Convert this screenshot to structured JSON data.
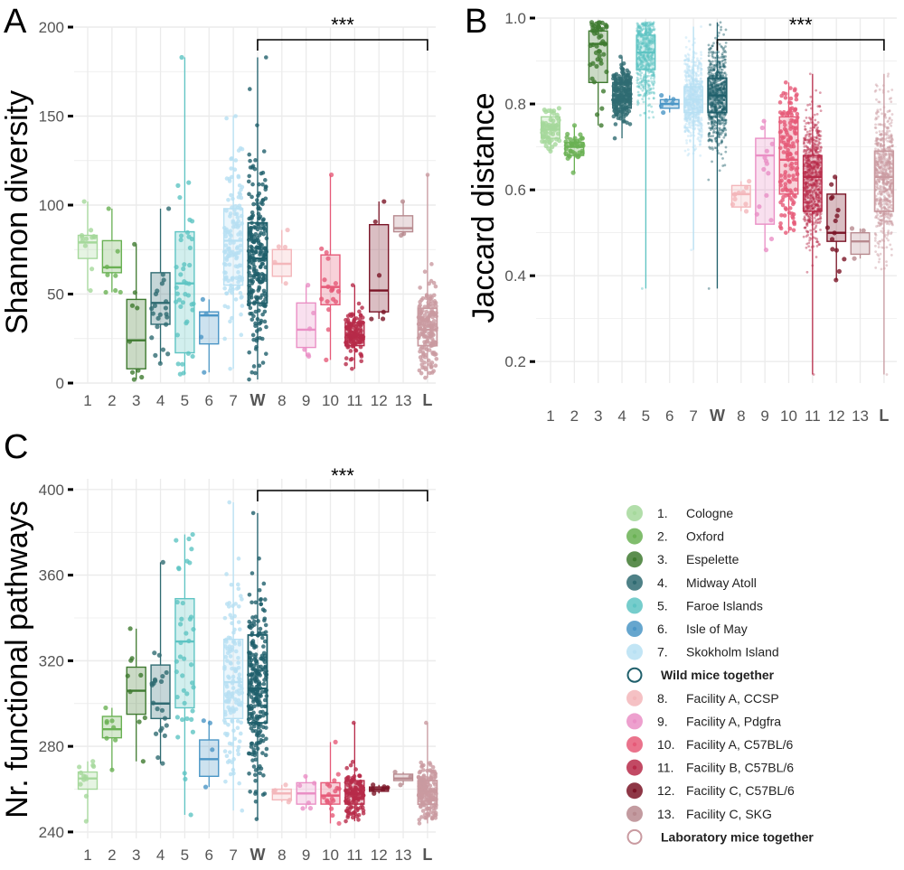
{
  "chart_data": [
    {
      "type": "box",
      "panel": "A",
      "title": "",
      "xlabel": "",
      "ylabel": "Shannon diversity",
      "ylim": [
        0,
        200
      ],
      "yticks": [
        0,
        50,
        100,
        150,
        200
      ],
      "categories": [
        "1",
        "2",
        "3",
        "4",
        "5",
        "6",
        "7",
        "W",
        "8",
        "9",
        "10",
        "11",
        "12",
        "13",
        "L"
      ],
      "bold_categories": [
        "W",
        "L"
      ],
      "significance": {
        "label": "***",
        "from": "W",
        "to": "L"
      },
      "boxes": [
        {
          "category": "1",
          "group": 0,
          "q1": 70,
          "median": 79,
          "q3": 83,
          "lo": 52,
          "hi": 102,
          "n": 12
        },
        {
          "category": "2",
          "group": 1,
          "q1": 62,
          "median": 65,
          "q3": 80,
          "lo": 51,
          "hi": 98,
          "n": 8
        },
        {
          "category": "3",
          "group": 2,
          "q1": 8,
          "median": 24,
          "q3": 47,
          "lo": 2,
          "hi": 78,
          "n": 9
        },
        {
          "category": "4",
          "group": 3,
          "q1": 33,
          "median": 45,
          "q3": 62,
          "lo": 11,
          "hi": 98,
          "n": 22
        },
        {
          "category": "5",
          "group": 4,
          "q1": 17,
          "median": 56,
          "q3": 85,
          "lo": 5,
          "hi": 183,
          "n": 40
        },
        {
          "category": "6",
          "group": 5,
          "q1": 22,
          "median": 38,
          "q3": 40,
          "lo": 6,
          "hi": 47,
          "n": 4
        },
        {
          "category": "7",
          "group": 6,
          "q1": 55,
          "median": 80,
          "q3": 98,
          "lo": 8,
          "hi": 150,
          "n": 140
        },
        {
          "category": "W",
          "group": 7,
          "q1": 45,
          "median": 70,
          "q3": 90,
          "lo": 2,
          "hi": 183,
          "n": 250
        },
        {
          "category": "8",
          "group": 8,
          "q1": 60,
          "median": 67,
          "q3": 75,
          "lo": 56,
          "hi": 86,
          "n": 5
        },
        {
          "category": "9",
          "group": 9,
          "q1": 20,
          "median": 30,
          "q3": 45,
          "lo": 15,
          "hi": 55,
          "n": 6
        },
        {
          "category": "10",
          "group": 10,
          "q1": 44,
          "median": 54,
          "q3": 72,
          "lo": 13,
          "hi": 117,
          "n": 18
        },
        {
          "category": "11",
          "group": 11,
          "q1": 21,
          "median": 27,
          "q3": 34,
          "lo": 8,
          "hi": 55,
          "n": 120
        },
        {
          "category": "12",
          "group": 12,
          "q1": 40,
          "median": 52,
          "q3": 89,
          "lo": 36,
          "hi": 102,
          "n": 6
        },
        {
          "category": "13",
          "group": 13,
          "q1": 85,
          "median": 87,
          "q3": 94,
          "lo": 83,
          "hi": 102,
          "n": 3
        },
        {
          "category": "L",
          "group": 14,
          "q1": 21,
          "median": 30,
          "q3": 42,
          "lo": 3,
          "hi": 117,
          "n": 180
        }
      ]
    },
    {
      "type": "box",
      "panel": "B",
      "title": "",
      "xlabel": "",
      "ylabel": "Jaccard distance",
      "ylim": [
        0.15,
        1.0
      ],
      "yticks": [
        0.2,
        0.4,
        0.6,
        0.8,
        1.0
      ],
      "ytick_labels": [
        "0.2",
        "0.4",
        "0.6",
        "0.8",
        "1.0"
      ],
      "categories": [
        "1",
        "2",
        "3",
        "4",
        "5",
        "6",
        "7",
        "W",
        "8",
        "9",
        "10",
        "11",
        "12",
        "13",
        "L"
      ],
      "bold_categories": [
        "W",
        "L"
      ],
      "significance": {
        "label": "***",
        "from": "W",
        "to": "L"
      },
      "boxes": [
        {
          "category": "1",
          "group": 0,
          "q1": 0.72,
          "median": 0.74,
          "q3": 0.77,
          "lo": 0.69,
          "hi": 0.79,
          "n": 60
        },
        {
          "category": "2",
          "group": 1,
          "q1": 0.68,
          "median": 0.7,
          "q3": 0.71,
          "lo": 0.64,
          "hi": 0.75,
          "n": 40
        },
        {
          "category": "3",
          "group": 2,
          "q1": 0.85,
          "median": 0.94,
          "q3": 0.97,
          "lo": 0.75,
          "hi": 0.99,
          "n": 50
        },
        {
          "category": "4",
          "group": 3,
          "q1": 0.79,
          "median": 0.82,
          "q3": 0.85,
          "lo": 0.72,
          "hi": 0.91,
          "n": 200
        },
        {
          "category": "5",
          "group": 4,
          "q1": 0.88,
          "median": 0.92,
          "q3": 0.96,
          "lo": 0.37,
          "hi": 0.99,
          "n": 500
        },
        {
          "category": "6",
          "group": 5,
          "q1": 0.79,
          "median": 0.8,
          "q3": 0.81,
          "lo": 0.78,
          "hi": 0.82,
          "n": 6
        },
        {
          "category": "7",
          "group": 6,
          "q1": 0.78,
          "median": 0.81,
          "q3": 0.84,
          "lo": 0.46,
          "hi": 0.98,
          "n": 900
        },
        {
          "category": "W",
          "group": 7,
          "q1": 0.78,
          "median": 0.82,
          "q3": 0.86,
          "lo": 0.37,
          "hi": 0.99,
          "n": 1400
        },
        {
          "category": "8",
          "group": 8,
          "q1": 0.56,
          "median": 0.59,
          "q3": 0.61,
          "lo": 0.55,
          "hi": 0.62,
          "n": 10
        },
        {
          "category": "9",
          "group": 9,
          "q1": 0.52,
          "median": 0.68,
          "q3": 0.72,
          "lo": 0.46,
          "hi": 0.76,
          "n": 15
        },
        {
          "category": "10",
          "group": 10,
          "q1": 0.59,
          "median": 0.67,
          "q3": 0.77,
          "lo": 0.5,
          "hi": 0.85,
          "n": 150
        },
        {
          "category": "11",
          "group": 11,
          "q1": 0.55,
          "median": 0.63,
          "q3": 0.68,
          "lo": 0.17,
          "hi": 0.87,
          "n": 3000
        },
        {
          "category": "12",
          "group": 12,
          "q1": 0.48,
          "median": 0.5,
          "q3": 0.59,
          "lo": 0.39,
          "hi": 0.63,
          "n": 15
        },
        {
          "category": "13",
          "group": 13,
          "q1": 0.45,
          "median": 0.48,
          "q3": 0.5,
          "lo": 0.44,
          "hi": 0.51,
          "n": 3
        },
        {
          "category": "L",
          "group": 14,
          "q1": 0.55,
          "median": 0.63,
          "q3": 0.69,
          "lo": 0.17,
          "hi": 0.87,
          "n": 3500
        }
      ]
    },
    {
      "type": "box",
      "panel": "C",
      "title": "",
      "xlabel": "",
      "ylabel": "Nr. functional pathways",
      "ylim": [
        237,
        405
      ],
      "yticks": [
        240,
        280,
        320,
        360,
        400
      ],
      "categories": [
        "1",
        "2",
        "3",
        "4",
        "5",
        "6",
        "7",
        "W",
        "8",
        "9",
        "10",
        "11",
        "12",
        "13",
        "L"
      ],
      "bold_categories": [
        "W",
        "L"
      ],
      "significance": {
        "label": "***",
        "from": "W",
        "to": "L"
      },
      "boxes": [
        {
          "category": "1",
          "group": 0,
          "q1": 260,
          "median": 265,
          "q3": 268,
          "lo": 245,
          "hi": 273,
          "n": 12
        },
        {
          "category": "2",
          "group": 1,
          "q1": 284,
          "median": 288,
          "q3": 294,
          "lo": 269,
          "hi": 298,
          "n": 8
        },
        {
          "category": "3",
          "group": 2,
          "q1": 295,
          "median": 306,
          "q3": 317,
          "lo": 273,
          "hi": 335,
          "n": 9
        },
        {
          "category": "4",
          "group": 3,
          "q1": 293,
          "median": 300,
          "q3": 318,
          "lo": 272,
          "hi": 366,
          "n": 22
        },
        {
          "category": "5",
          "group": 4,
          "q1": 298,
          "median": 329,
          "q3": 349,
          "lo": 248,
          "hi": 379,
          "n": 40
        },
        {
          "category": "6",
          "group": 5,
          "q1": 266,
          "median": 274,
          "q3": 283,
          "lo": 261,
          "hi": 292,
          "n": 4
        },
        {
          "category": "7",
          "group": 6,
          "q1": 293,
          "median": 310,
          "q3": 330,
          "lo": 250,
          "hi": 394,
          "n": 140
        },
        {
          "category": "W",
          "group": 7,
          "q1": 291,
          "median": 307,
          "q3": 332,
          "lo": 246,
          "hi": 389,
          "n": 250
        },
        {
          "category": "8",
          "group": 8,
          "q1": 255,
          "median": 258,
          "q3": 260,
          "lo": 254,
          "hi": 262,
          "n": 5
        },
        {
          "category": "9",
          "group": 9,
          "q1": 253,
          "median": 258,
          "q3": 263,
          "lo": 251,
          "hi": 266,
          "n": 6
        },
        {
          "category": "10",
          "group": 10,
          "q1": 253,
          "median": 257,
          "q3": 263,
          "lo": 244,
          "hi": 282,
          "n": 18
        },
        {
          "category": "11",
          "group": 11,
          "q1": 253,
          "median": 258,
          "q3": 264,
          "lo": 245,
          "hi": 291,
          "n": 120
        },
        {
          "category": "12",
          "group": 12,
          "q1": 259,
          "median": 260,
          "q3": 261,
          "lo": 258,
          "hi": 262,
          "n": 6
        },
        {
          "category": "13",
          "group": 13,
          "q1": 264,
          "median": 265,
          "q3": 267,
          "lo": 262,
          "hi": 268,
          "n": 3
        },
        {
          "category": "L",
          "group": 14,
          "q1": 253,
          "median": 259,
          "q3": 264,
          "lo": 244,
          "hi": 291,
          "n": 180
        }
      ]
    }
  ],
  "legend": {
    "items": [
      {
        "num": "1.",
        "label": "Cologne",
        "group": 0,
        "style": "filled"
      },
      {
        "num": "2.",
        "label": "Oxford",
        "group": 1,
        "style": "filled"
      },
      {
        "num": "3.",
        "label": "Espelette",
        "group": 2,
        "style": "filled"
      },
      {
        "num": "4.",
        "label": "Midway Atoll",
        "group": 3,
        "style": "filled"
      },
      {
        "num": "5.",
        "label": "Faroe Islands",
        "group": 4,
        "style": "filled"
      },
      {
        "num": "6.",
        "label": "Isle of May",
        "group": 5,
        "style": "filled"
      },
      {
        "num": "7.",
        "label": "Skokholm Island",
        "group": 6,
        "style": "filled"
      },
      {
        "num": "",
        "label": "Wild mice together",
        "group": 7,
        "style": "hollow"
      },
      {
        "num": "8.",
        "label": "Facility A, CCSP",
        "group": 8,
        "style": "filled"
      },
      {
        "num": "9.",
        "label": "Facility A, Pdgfra",
        "group": 9,
        "style": "filled"
      },
      {
        "num": "10.",
        "label": "Facility A, C57BL/6",
        "group": 10,
        "style": "filled"
      },
      {
        "num": "11.",
        "label": "Facility B, C57BL/6",
        "group": 11,
        "style": "filled"
      },
      {
        "num": "12.",
        "label": "Facility C, C57BL/6",
        "group": 12,
        "style": "filled"
      },
      {
        "num": "13.",
        "label": "Facility C, SKG",
        "group": 13,
        "style": "filled"
      },
      {
        "num": "",
        "label": "Laboratory mice together",
        "group": 14,
        "style": "hollow"
      }
    ]
  },
  "colors": {
    "groups": [
      "#a5d89b",
      "#6ab154",
      "#3f7a30",
      "#2f6b72",
      "#5ec4c3",
      "#4b96c6",
      "#b7e0f3",
      "#1f5f6b",
      "#f3b6ba",
      "#ea8fc5",
      "#e65a78",
      "#b72a49",
      "#7a1426",
      "#b88a8f",
      "#c99aa0"
    ],
    "grid": "#ebebeb",
    "axis_text": "#555555"
  }
}
